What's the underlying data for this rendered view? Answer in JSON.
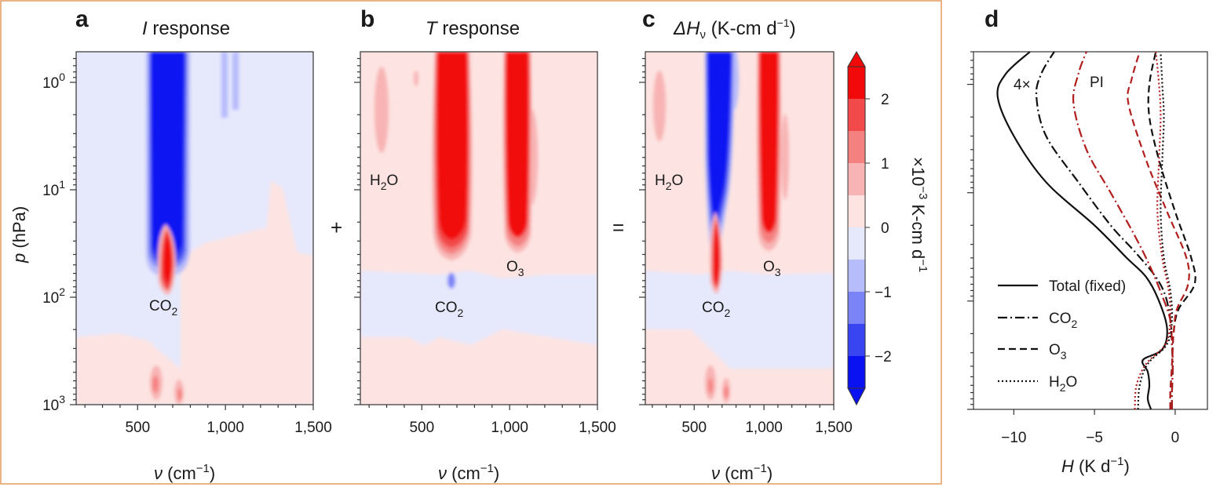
{
  "figure": {
    "colors": {
      "box_border": "#e59a5c",
      "deep_blue": "#0a12f2",
      "blue1": "#3a45f2",
      "blue2": "#7b84f6",
      "blue3": "#b7bcfa",
      "neutral_neg": "#e6e8fc",
      "neutral_pos": "#fde4e2",
      "red1": "#f8b4b4",
      "red2": "#f58080",
      "red3": "#f24a4a",
      "deep_red": "#f20a0a",
      "co2_line": "#111111",
      "dark_red_line": "#b21e1e"
    }
  },
  "panels": {
    "a": {
      "letter": "a",
      "title_italic": "I",
      "title_rest": " response"
    },
    "b": {
      "letter": "b",
      "title_italic": "T",
      "title_rest": " response"
    },
    "c": {
      "letter": "c",
      "title_delta": "ΔH",
      "title_sub": "ν",
      "title_rest": " (K-cm d",
      "title_sup": "−1",
      "title_close": ")"
    },
    "d": {
      "letter": "d"
    }
  },
  "operators": {
    "plus": "+",
    "equals": "="
  },
  "annotations": {
    "co2": "CO",
    "co2_sub": "2",
    "h2o_1": "H",
    "h2o_sub": "2",
    "h2o_2": "O",
    "o3": "O",
    "o3_sub": "3",
    "label_4x": "4×",
    "label_pi": "PI"
  },
  "chart_data": [
    {
      "panel": "a",
      "type": "heatmap",
      "xlabel": "ν (cm⁻¹)",
      "ylabel": "p (hPa)",
      "xlim": [
        150,
        1500
      ],
      "ylim": [
        1000,
        0.5
      ],
      "yscale": "log",
      "xticks": [
        "500",
        "1,000",
        "1,500"
      ],
      "yticks_mantissa": "10",
      "yticks_exp": [
        "0",
        "1",
        "2",
        "3"
      ]
    },
    {
      "panel": "b",
      "type": "heatmap",
      "xlabel": "ν (cm⁻¹)",
      "xlim": [
        150,
        1500
      ],
      "ylim": [
        1000,
        0.5
      ],
      "yscale": "log",
      "xticks": [
        "500",
        "1,000",
        "1,500"
      ]
    },
    {
      "panel": "c",
      "type": "heatmap",
      "xlabel": "ν (cm⁻¹)",
      "xlim": [
        150,
        1500
      ],
      "ylim": [
        1000,
        0.5
      ],
      "yscale": "log",
      "xticks": [
        "500",
        "1,000",
        "1,500"
      ],
      "colorbar": {
        "ticks": [
          "2",
          "1",
          "0",
          "−1",
          "−2"
        ],
        "label_pre": "×10",
        "label_sup": "−3",
        "label_post": " K-cm d",
        "label_sup2": "−1",
        "range": [
          -2.5,
          2.5
        ]
      }
    },
    {
      "panel": "d",
      "type": "line",
      "xlabel_italic": "H",
      "xlabel_rest": " (K d",
      "xlabel_sup": "−1",
      "xlabel_close": ")",
      "xlim": [
        -12.5,
        2
      ],
      "ylim": [
        1000,
        0.5
      ],
      "yscale": "log",
      "xticks": [
        "−10",
        "−5",
        "0"
      ],
      "legend": [
        {
          "name": "Total (fixed)",
          "style": "solid"
        },
        {
          "name": "CO",
          "sub": "2",
          "style": "dashdot"
        },
        {
          "name": "O",
          "sub": "3",
          "style": "dashed"
        },
        {
          "name": "H",
          "sub": "2",
          "post": "O",
          "style": "dotted"
        }
      ],
      "series": [
        {
          "name": "Total (fixed)",
          "scenario": "4×",
          "H": [
            -1.5,
            -1.7,
            -1.6,
            -1.7,
            -2.0,
            -0.8,
            -0.5,
            -1.0,
            -1.8,
            -3.0,
            -5.0,
            -8.0,
            -10.0,
            -11.0,
            -10.5,
            -9.0
          ],
          "p": [
            1000,
            800,
            600,
            450,
            350,
            280,
            180,
            100,
            60,
            40,
            20,
            8,
            3,
            1.3,
            0.8,
            0.5
          ]
        },
        {
          "name": "CO2",
          "scenario": "4×",
          "H": [
            -0.2,
            -0.2,
            -0.15,
            -0.2,
            -0.3,
            -0.6,
            -1.2,
            -2.5,
            -4.0,
            -6.0,
            -8.0,
            -8.6,
            -8.3,
            -7.5
          ],
          "p": [
            1000,
            700,
            400,
            250,
            150,
            90,
            60,
            35,
            20,
            8,
            3,
            1.3,
            0.8,
            0.5
          ]
        },
        {
          "name": "CO2",
          "scenario": "PI",
          "H": [
            -0.2,
            -0.2,
            -0.15,
            -0.2,
            -0.3,
            -0.8,
            -1.5,
            -2.5,
            -4.0,
            -5.5,
            -6.3,
            -6.0,
            -5.5
          ],
          "p": [
            1000,
            700,
            400,
            250,
            150,
            90,
            50,
            25,
            10,
            4,
            1.5,
            0.8,
            0.5
          ]
        },
        {
          "name": "O3",
          "scenario": "4×",
          "H": [
            -0.3,
            -0.3,
            -0.2,
            -0.1,
            0.2,
            1.2,
            1.0,
            0.0,
            -1.0,
            -1.6,
            -1.6,
            -1.2
          ],
          "p": [
            1000,
            700,
            400,
            200,
            120,
            70,
            40,
            15,
            5,
            2,
            1,
            0.5
          ]
        },
        {
          "name": "O3",
          "scenario": "PI",
          "H": [
            -0.3,
            -0.3,
            -0.2,
            -0.1,
            0.1,
            0.8,
            0.7,
            -0.5,
            -1.8,
            -2.9,
            -2.7,
            -2.2
          ],
          "p": [
            1000,
            700,
            400,
            200,
            120,
            70,
            40,
            15,
            5,
            1.5,
            0.9,
            0.5
          ]
        },
        {
          "name": "H2O",
          "scenario": "4×",
          "H": [
            -2.3,
            -2.2,
            -1.7,
            -0.5,
            -0.2,
            -0.3,
            -0.7,
            -0.9,
            -0.8,
            -0.7,
            -0.8,
            -0.9
          ],
          "p": [
            1000,
            600,
            380,
            250,
            150,
            80,
            40,
            15,
            5,
            2,
            1,
            0.5
          ]
        },
        {
          "name": "H2O",
          "scenario": "PI",
          "H": [
            -2.5,
            -2.4,
            -1.8,
            -0.6,
            -0.3,
            -0.4,
            -0.8,
            -1.1,
            -1.0,
            -0.9,
            -1.0,
            -1.2
          ],
          "p": [
            1000,
            600,
            380,
            250,
            150,
            80,
            40,
            15,
            5,
            2,
            1,
            0.5
          ]
        }
      ]
    }
  ]
}
